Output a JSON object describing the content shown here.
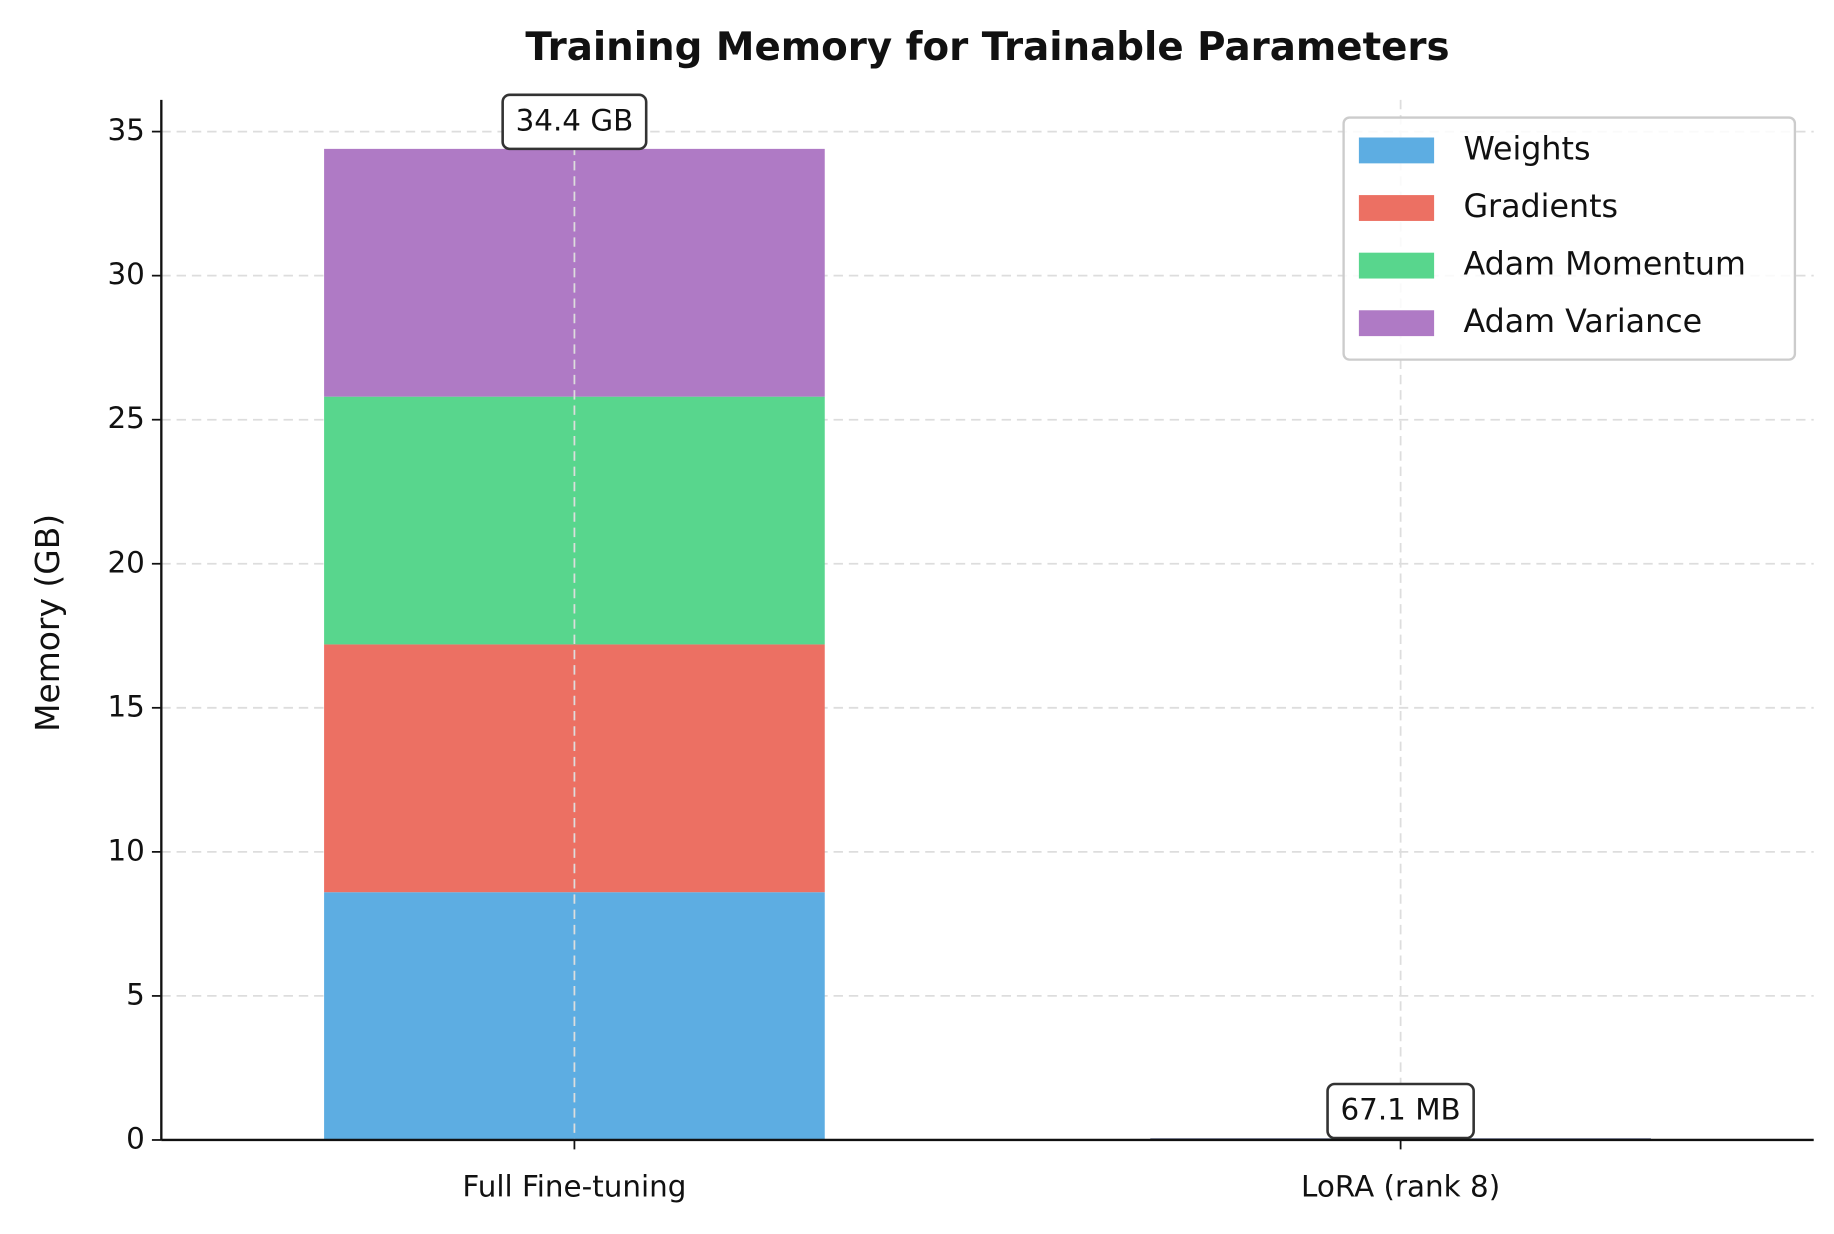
{
  "chart_data": {
    "type": "stacked_bar",
    "title": "Training Memory for Trainable Parameters",
    "y_label": "Memory (GB)",
    "categories": [
      "Full Fine-tuning",
      "LoRA (rank 8)"
    ],
    "series": [
      {
        "name": "Weights",
        "color": "#5dade2",
        "values": [
          8.6,
          0.016775
        ]
      },
      {
        "name": "Gradients",
        "color": "#ec7063",
        "values": [
          8.6,
          0.016775
        ]
      },
      {
        "name": "Adam Momentum",
        "color": "#58d68d",
        "values": [
          8.6,
          0.016775
        ]
      },
      {
        "name": "Adam Variance",
        "color": "#af7ac5",
        "values": [
          8.6,
          0.016775
        ]
      }
    ],
    "totals": [
      34.4,
      0.0671
    ],
    "total_labels": [
      "34.4 GB",
      "67.1 MB"
    ],
    "ylim": [
      0,
      36.1
    ],
    "yticks": [
      0,
      5,
      10,
      15,
      20,
      25,
      30,
      35
    ],
    "grid": true,
    "legend": "upper-right"
  }
}
